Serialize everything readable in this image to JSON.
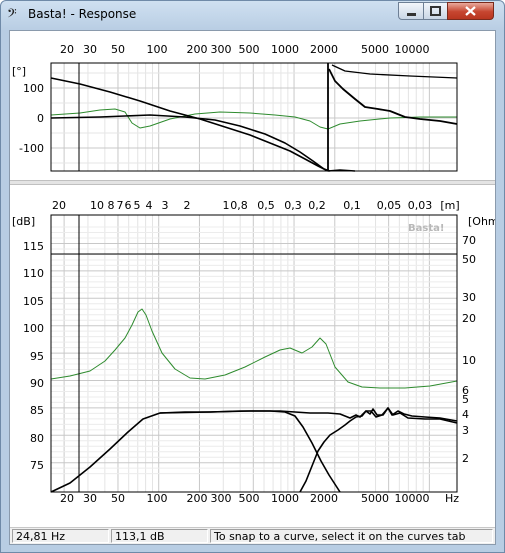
{
  "window": {
    "title": "Basta! - Response",
    "app_icon": "bass-clef-icon"
  },
  "phase_plot": {
    "freq_ticks": [
      "20",
      "30",
      "50",
      "100",
      "200",
      "300",
      "500",
      "1000",
      "2000",
      "5000",
      "10000"
    ],
    "unit": "[°]",
    "y_ticks": [
      "100",
      "0",
      "-100"
    ]
  },
  "spl_plot": {
    "wavelength_ticks": [
      "20",
      "10",
      "8",
      "7",
      "6",
      "5",
      "4",
      "3",
      "2",
      "1",
      "0,8",
      "0,5",
      "0,3",
      "0,2",
      "0,1",
      "0,05",
      "0,03"
    ],
    "wavelength_unit": "[m]",
    "left_unit": "[dB]",
    "right_unit": "[Ohm]",
    "db_ticks": [
      "115",
      "110",
      "105",
      "100",
      "95",
      "90",
      "85",
      "80",
      "75"
    ],
    "ohm_ticks": [
      "70",
      "50",
      "30",
      "20",
      "10",
      "6",
      "5",
      "4",
      "3",
      "2"
    ],
    "freq_ticks": [
      "20",
      "30",
      "50",
      "100",
      "200",
      "300",
      "500",
      "1000",
      "2000",
      "5000",
      "10000",
      "Hz"
    ],
    "watermark": "Basta!"
  },
  "status": {
    "frequency": "24,81 Hz",
    "level": "113,1 dB",
    "hint": "To snap to a curve, select it on the curves tab"
  },
  "colors": {
    "impedance_curve": "#2e8b2e",
    "response_curve": "#000000"
  }
}
